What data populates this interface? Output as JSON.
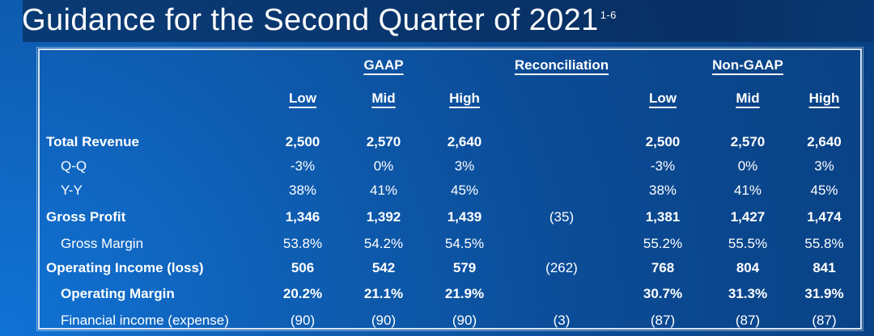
{
  "title": {
    "text": "Guidance for the Second Quarter of 2021",
    "superscript": "1-6"
  },
  "colors": {
    "background_bright": "#1173d6",
    "background_dark": "#094183",
    "table_border": "#d9e5f3",
    "text": "#ffffff"
  },
  "table": {
    "group_headers": {
      "gaap": "GAAP",
      "reconciliation": "Reconciliation",
      "non_gaap": "Non-GAAP"
    },
    "sub_headers": {
      "low": "Low",
      "mid": "Mid",
      "high": "High"
    },
    "rows": [
      {
        "label": "Total Revenue",
        "bold": true,
        "indent": false,
        "gaap": [
          "2,500",
          "2,570",
          "2,640"
        ],
        "reconciliation": "",
        "non_gaap": [
          "2,500",
          "2,570",
          "2,640"
        ]
      },
      {
        "label": "Q-Q",
        "bold": false,
        "indent": true,
        "gaap": [
          "-3%",
          "0%",
          "3%"
        ],
        "reconciliation": "",
        "non_gaap": [
          "-3%",
          "0%",
          "3%"
        ]
      },
      {
        "label": "Y-Y",
        "bold": false,
        "indent": true,
        "gaap": [
          "38%",
          "41%",
          "45%"
        ],
        "reconciliation": "",
        "non_gaap": [
          "38%",
          "41%",
          "45%"
        ]
      },
      {
        "label": "Gross Profit",
        "bold": true,
        "indent": false,
        "gaap": [
          "1,346",
          "1,392",
          "1,439"
        ],
        "reconciliation": "(35)",
        "non_gaap": [
          "1,381",
          "1,427",
          "1,474"
        ]
      },
      {
        "label": "Gross Margin",
        "bold": false,
        "indent": true,
        "gaap": [
          "53.8%",
          "54.2%",
          "54.5%"
        ],
        "reconciliation": "",
        "non_gaap": [
          "55.2%",
          "55.5%",
          "55.8%"
        ]
      },
      {
        "label": "Operating Income (loss)",
        "bold": true,
        "indent": false,
        "gaap": [
          "506",
          "542",
          "579"
        ],
        "reconciliation": "(262)",
        "non_gaap": [
          "768",
          "804",
          "841"
        ]
      },
      {
        "label": "Operating Margin",
        "bold": true,
        "indent": true,
        "gaap": [
          "20.2%",
          "21.1%",
          "21.9%"
        ],
        "reconciliation": "",
        "non_gaap": [
          "30.7%",
          "31.3%",
          "31.9%"
        ]
      },
      {
        "label": "Financial income (expense)",
        "bold": false,
        "indent": true,
        "gaap": [
          "(90)",
          "(90)",
          "(90)"
        ],
        "reconciliation": "(3)",
        "non_gaap": [
          "(87)",
          "(87)",
          "(87)"
        ]
      }
    ]
  }
}
